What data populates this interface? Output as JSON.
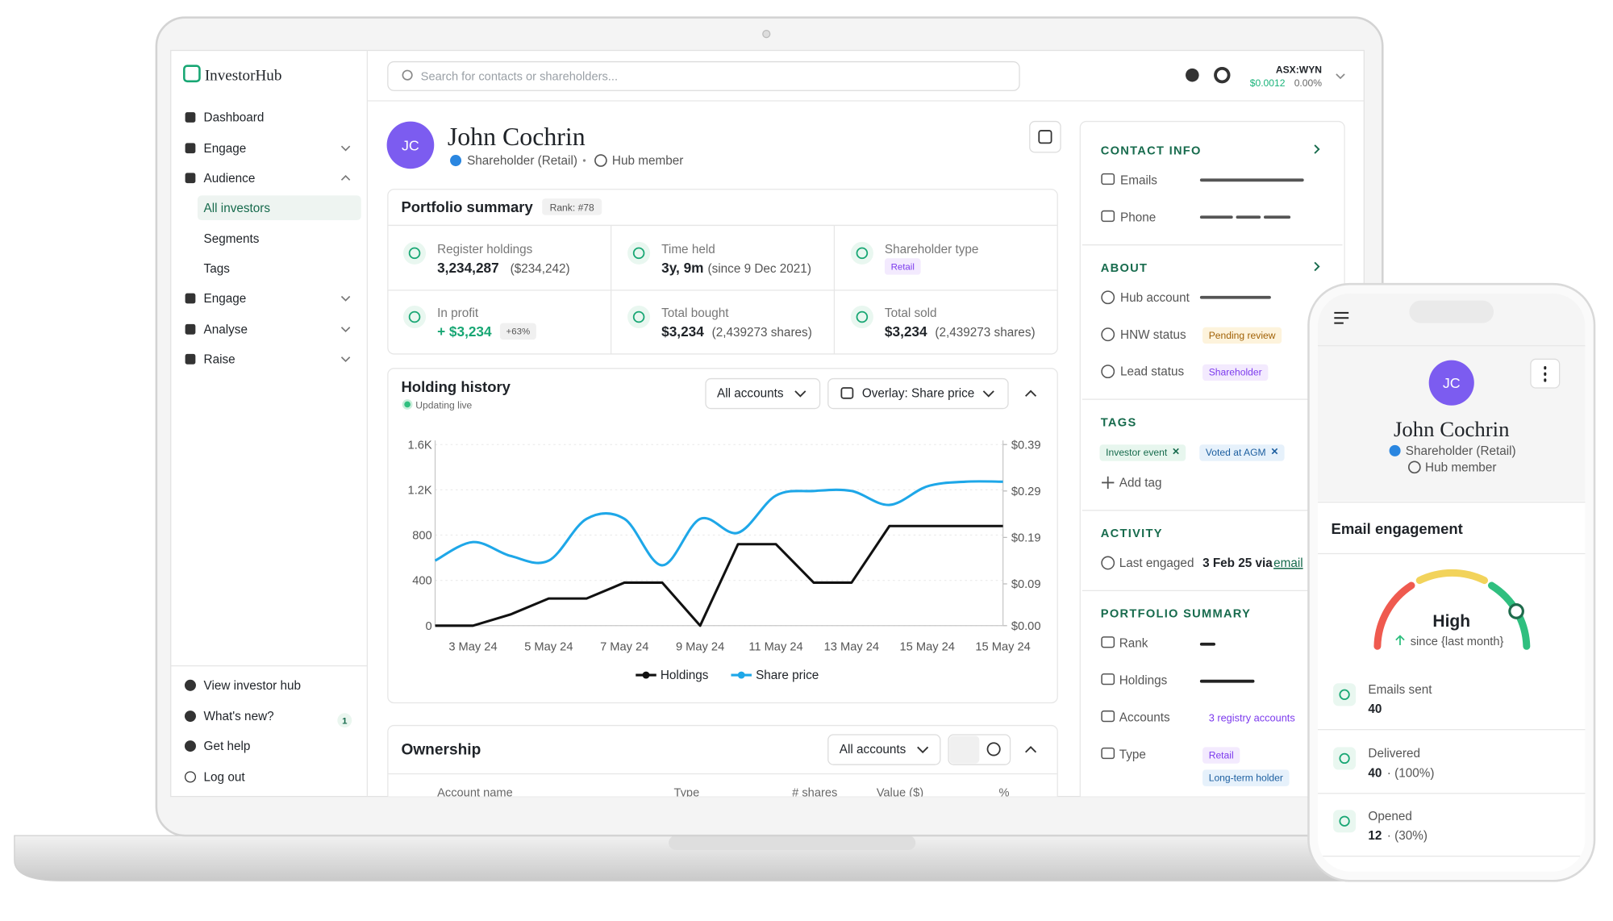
{
  "sidebar": {
    "logo": "InvestorHub",
    "items": [
      "Dashboard",
      "Engage",
      "Audience",
      "All investors",
      "Segments",
      "Tags",
      "Engage",
      "Analyse",
      "Raise"
    ],
    "footer": [
      "View investor hub",
      "What's new?",
      "Get help",
      "Log out"
    ],
    "badge": "1"
  },
  "topbar": {
    "search": "Search for contacts or shareholders...",
    "ticker": "ASX:WYN",
    "price": "$0.0012",
    "change": "0.00%"
  },
  "profile": {
    "initials": "JC",
    "name": "John Cochrin",
    "type": "Shareholder (Retail)",
    "member": "Hub member"
  },
  "portfolio": {
    "title": "Portfolio summary",
    "rank": "Rank: #78",
    "cells": [
      {
        "label": "Register holdings",
        "value": "3,234,287",
        "sub": "($234,242)"
      },
      {
        "label": "Time held",
        "value": "3y, 9m",
        "sub": "(since 9 Dec 2021)"
      },
      {
        "label": "Shareholder type",
        "tag": "Retail"
      },
      {
        "label": "In profit",
        "value": "+ $3,234",
        "tag": "+63%"
      },
      {
        "label": "Total bought",
        "value": "$3,234",
        "sub": "(2,439273 shares)"
      },
      {
        "label": "Total sold",
        "value": "$3,234",
        "sub": "(2,439273 shares)"
      }
    ]
  },
  "holding_controls": {
    "accounts": "All accounts",
    "overlay": "Overlay: Share price"
  },
  "chart_data": {
    "type": "line",
    "title": "Holding history",
    "subtitle": "Updating live",
    "categories": [
      null,
      "3 May 24",
      null,
      "5 May 24",
      null,
      "7 May 24",
      null,
      "9 May 24",
      null,
      "11 May 24",
      null,
      "13 May 24",
      null,
      "15 May 24",
      null,
      "15 May 24"
    ],
    "series": [
      {
        "name": "Holdings",
        "color": "#111111",
        "values": [
          0,
          0,
          100,
          240,
          240,
          380,
          380,
          0,
          720,
          720,
          380,
          380,
          880,
          880,
          880,
          880
        ]
      },
      {
        "name": "Share price",
        "color": "#1ea7e8",
        "axis": "y2",
        "values": [
          0.14,
          0.18,
          0.15,
          0.14,
          0.23,
          0.23,
          0.13,
          0.23,
          0.2,
          0.28,
          0.29,
          0.29,
          0.26,
          0.3,
          0.31,
          0.31
        ]
      }
    ],
    "ylim": [
      0,
      1600
    ],
    "yticks": [
      0,
      400,
      800,
      {
        "value": 1200,
        "label": "1.2K"
      },
      {
        "value": 1600,
        "label": "1.6K"
      }
    ],
    "y2lim": [
      0,
      0.39
    ],
    "y2ticks": [
      {
        "value": 0,
        "label": "$0.00"
      },
      {
        "value": 0.09,
        "label": "$0.09"
      },
      {
        "value": 0.19,
        "label": "$0.19"
      },
      {
        "value": 0.29,
        "label": "$0.29"
      },
      {
        "value": 0.39,
        "label": "$0.39"
      }
    ],
    "grid": true,
    "legend": "bottom"
  },
  "ownership": {
    "title": "Ownership",
    "filter": "All accounts",
    "columns": [
      "Account name",
      "Type",
      "# shares",
      "Value ($)",
      "%"
    ]
  },
  "details": {
    "contact": {
      "title": "CONTACT INFO",
      "rows": [
        "Emails",
        "Phone"
      ]
    },
    "about": {
      "title": "ABOUT",
      "rows": [
        "Hub account",
        "HNW status",
        "Lead status"
      ],
      "hnw": "Pending review",
      "lead": "Shareholder"
    },
    "tags": {
      "title": "TAGS",
      "items": [
        "Investor event",
        "Voted at AGM"
      ],
      "add": "Add tag"
    },
    "activity": {
      "title": "ACTIVITY",
      "label": "Last engaged",
      "value": "3 Feb 25 via",
      "link": "email"
    },
    "portfolio": {
      "title": "PORTFOLIO SUMMARY",
      "rows": [
        "Rank",
        "Holdings",
        "Accounts",
        "Type"
      ],
      "accounts": "3 registry accounts",
      "types": [
        "Retail",
        "Long-term holder"
      ]
    }
  },
  "phone": {
    "initials": "JC",
    "name": "John Cochrin",
    "type": "Shareholder (Retail)",
    "member": "Hub member",
    "section": "Email engagement",
    "level": "High",
    "since": "since {last month}",
    "stats": [
      {
        "label": "Emails sent",
        "value": "40"
      },
      {
        "label": "Delivered",
        "value": "40",
        "note": "· (100%)"
      },
      {
        "label": "Opened",
        "value": "12",
        "note": "· (30%)"
      }
    ]
  }
}
